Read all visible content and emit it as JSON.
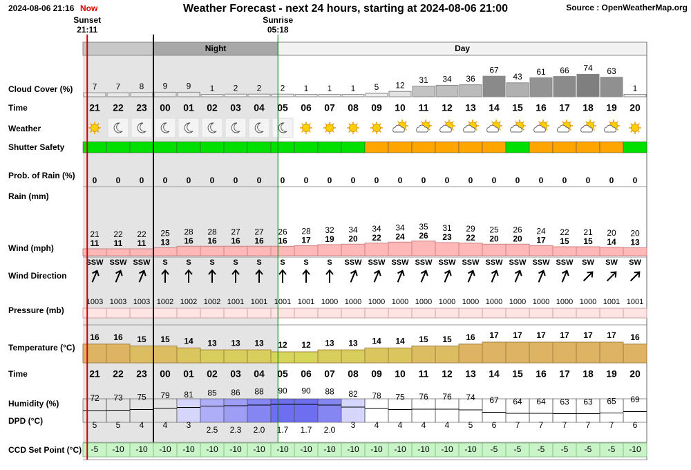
{
  "header": {
    "timestamp": "2024-08-06 21:16",
    "now": "Now",
    "title": "Weather Forecast - next 24 hours, starting at 2024-08-06 21:00",
    "source": "Source : OpenWeatherMap.org"
  },
  "sun": {
    "sunset_label": "Sunset",
    "sunset_time": "21:11",
    "sunrise_label": "Sunrise",
    "sunrise_time": "05:18"
  },
  "periods": {
    "night": "Night",
    "day": "Day"
  },
  "rows": {
    "cloud_cover": "Cloud Cover (%)",
    "time": "Time",
    "weather": "Weather",
    "shutter_safety": "Shutter Safety",
    "rain_prob": "Prob. of Rain (%)",
    "rain": "Rain (mm)",
    "wind": "Wind (mph)",
    "wind_direction": "Wind Direction",
    "pressure": "Pressure (mb)",
    "temperature": "Temperature (°C)",
    "humidity": "Humidity (%)",
    "dpd": "DPD (°C)",
    "ccd": "CCD Set Point (°C)"
  },
  "hours": [
    "21",
    "22",
    "23",
    "00",
    "01",
    "02",
    "03",
    "04",
    "05",
    "06",
    "07",
    "08",
    "09",
    "10",
    "11",
    "12",
    "13",
    "14",
    "15",
    "16",
    "17",
    "18",
    "19",
    "20"
  ],
  "cloud_cover": [
    7,
    7,
    8,
    9,
    9,
    1,
    2,
    2,
    2,
    1,
    1,
    1,
    5,
    12,
    31,
    34,
    36,
    67,
    43,
    61,
    66,
    74,
    63,
    1
  ],
  "weather_icons": [
    "sun",
    "moon",
    "moon",
    "moon",
    "moon",
    "moon",
    "moon",
    "moon",
    "moon",
    "sun",
    "sun",
    "sun",
    "sun",
    "partly",
    "partly",
    "partly",
    "partly",
    "partly",
    "partly",
    "partly",
    "partly",
    "partly",
    "partly",
    "sun"
  ],
  "shutter_colors": [
    "#00e000",
    "#00e000",
    "#00e000",
    "#00e000",
    "#00e000",
    "#00e000",
    "#00e000",
    "#00e000",
    "#00e000",
    "#00e000",
    "#00e000",
    "#00e000",
    "#ffa500",
    "#ffa500",
    "#ffa500",
    "#ffa500",
    "#ffa500",
    "#ffa500",
    "#00e000",
    "#ffa500",
    "#ffa500",
    "#ffa500",
    "#ffa500",
    "#00e000"
  ],
  "rain_prob": [
    0,
    0,
    0,
    0,
    0,
    0,
    0,
    0,
    0,
    0,
    0,
    0,
    0,
    0,
    0,
    0,
    0,
    0,
    0,
    0,
    0,
    0,
    0,
    0
  ],
  "wind_gust": [
    21,
    22,
    22,
    25,
    28,
    28,
    27,
    27,
    26,
    28,
    32,
    34,
    34,
    34,
    35,
    31,
    29,
    25,
    26,
    24,
    22,
    21,
    20,
    20
  ],
  "wind_speed": [
    11,
    11,
    11,
    13,
    16,
    16,
    16,
    16,
    16,
    17,
    19,
    20,
    22,
    24,
    26,
    23,
    22,
    20,
    20,
    17,
    15,
    15,
    14,
    13
  ],
  "wind_direction": [
    "SSW",
    "SSW",
    "SSW",
    "S",
    "S",
    "S",
    "S",
    "S",
    "S",
    "S",
    "S",
    "SSW",
    "SSW",
    "SSW",
    "SSW",
    "SSW",
    "SSW",
    "SSW",
    "SSW",
    "SSW",
    "SSW",
    "SW",
    "SW",
    "SW"
  ],
  "pressure": [
    1003,
    1003,
    1003,
    1002,
    1002,
    1002,
    1001,
    1001,
    1001,
    1001,
    1000,
    1000,
    1000,
    1000,
    1000,
    1000,
    1000,
    1000,
    1000,
    1000,
    1000,
    1000,
    1001,
    1001
  ],
  "temperature": [
    16,
    16,
    15,
    15,
    14,
    13,
    13,
    13,
    12,
    12,
    13,
    13,
    14,
    14,
    15,
    15,
    16,
    17,
    17,
    17,
    17,
    17,
    17,
    16
  ],
  "humidity": [
    72,
    73,
    75,
    79,
    81,
    85,
    86,
    88,
    90,
    90,
    88,
    82,
    78,
    75,
    76,
    76,
    74,
    67,
    64,
    64,
    63,
    63,
    65,
    69
  ],
  "dpd": {
    "values": [
      5,
      5,
      4,
      4,
      3,
      2.5,
      2.3,
      2.0,
      1.7,
      1.7,
      2.0,
      3,
      4,
      4,
      4,
      4,
      5,
      6,
      7,
      7,
      7,
      7,
      7,
      6
    ],
    "value_labels": [
      "5",
      "5",
      "4",
      "4",
      "3",
      "2.5",
      "2.3",
      "2.0",
      "1.7",
      "1.7",
      "2.0",
      "3",
      "4",
      "4",
      "4",
      "4",
      "5",
      "6",
      "7",
      "7",
      "7",
      "7",
      "7",
      "6"
    ]
  },
  "ccd": [
    -5,
    -10,
    -10,
    -10,
    -10,
    -10,
    -10,
    -10,
    -10,
    -10,
    -10,
    -10,
    -10,
    -10,
    -10,
    -10,
    -10,
    -5,
    -5,
    -5,
    -5,
    -5,
    -5,
    -10
  ]
}
